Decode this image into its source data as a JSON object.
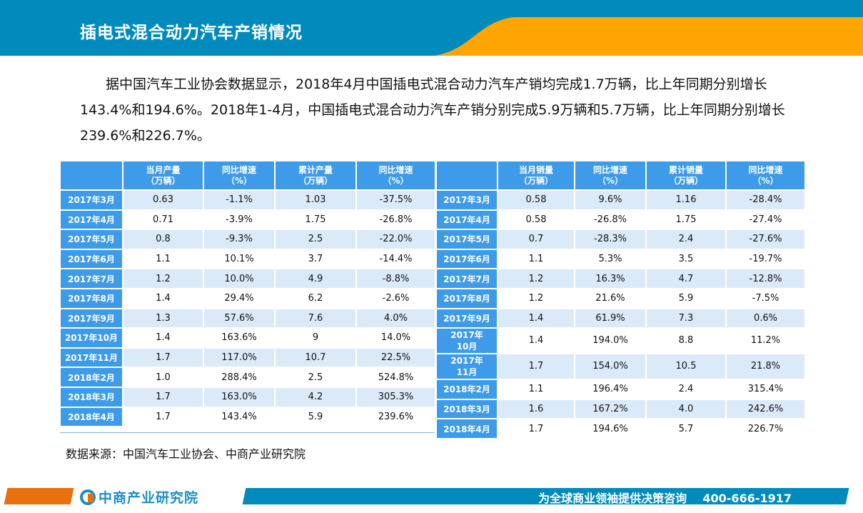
{
  "header": {
    "title": "插电式混合动力汽车产销情况",
    "colors": {
      "blue": "#018bbd",
      "orange": "#fea503"
    }
  },
  "intro": {
    "text": "据中国汽车工业协会数据显示，2018年4月中国插电式混合动力汽车产销均完成1.7万辆，比上年同期分别增长143.4%和194.6%。2018年1-4月，中国插电式混合动力汽车产销分别完成5.9万辆和5.7万辆，比上年同期分别增长239.6%和226.7%。"
  },
  "production_table": {
    "headers": [
      "",
      "当月产量\n（万辆）",
      "同比增速\n（%）",
      "累计产量\n（万辆）",
      "同比增速\n（%）"
    ],
    "rows": [
      [
        "2017年3月",
        "0.63",
        "-1.1%",
        "1.03",
        "-37.5%"
      ],
      [
        "2017年4月",
        "0.71",
        "-3.9%",
        "1.75",
        "-26.8%"
      ],
      [
        "2017年5月",
        "0.8",
        "-9.3%",
        "2.5",
        "-22.0%"
      ],
      [
        "2017年6月",
        "1.1",
        "10.1%",
        "3.7",
        "-14.4%"
      ],
      [
        "2017年7月",
        "1.2",
        "10.0%",
        "4.9",
        "-8.8%"
      ],
      [
        "2017年8月",
        "1.4",
        "29.4%",
        "6.2",
        "-2.6%"
      ],
      [
        "2017年9月",
        "1.3",
        "57.6%",
        "7.6",
        "4.0%"
      ],
      [
        "2017年10月",
        "1.4",
        "163.6%",
        "9",
        "14.0%"
      ],
      [
        "2017年11月",
        "1.7",
        "117.0%",
        "10.7",
        "22.5%"
      ],
      [
        "2018年2月",
        "1.0",
        "288.4%",
        "2.5",
        "524.8%"
      ],
      [
        "2018年3月",
        "1.7",
        "163.0%",
        "4.2",
        "305.3%"
      ],
      [
        "2018年4月",
        "1.7",
        "143.4%",
        "5.9",
        "239.6%"
      ]
    ]
  },
  "sales_table": {
    "headers": [
      "",
      "当月销量\n（万辆）",
      "同比增速\n（%）",
      "累计销量\n（万辆）",
      "同比增速\n（%）"
    ],
    "rows": [
      [
        "2017年3月",
        "0.58",
        "9.6%",
        "1.16",
        "-28.4%"
      ],
      [
        "2017年4月",
        "0.58",
        "-26.8%",
        "1.75",
        "-27.4%"
      ],
      [
        "2017年5月",
        "0.7",
        "-28.3%",
        "2.4",
        "-27.6%"
      ],
      [
        "2017年6月",
        "1.1",
        "5.3%",
        "3.5",
        "-19.7%"
      ],
      [
        "2017年7月",
        "1.2",
        "16.3%",
        "4.7",
        "-12.8%"
      ],
      [
        "2017年8月",
        "1.2",
        "21.6%",
        "5.9",
        "-7.5%"
      ],
      [
        "2017年9月",
        "1.4",
        "61.9%",
        "7.3",
        "0.6%"
      ],
      [
        "2017年10月",
        "1.4",
        "194.0%",
        "8.8",
        "11.2%"
      ],
      [
        "2017年11月",
        "1.7",
        "154.0%",
        "10.5",
        "21.8%"
      ],
      [
        "2018年2月",
        "1.1",
        "196.4%",
        "2.4",
        "315.4%"
      ],
      [
        "2018年3月",
        "1.6",
        "167.2%",
        "4.0",
        "242.6%"
      ],
      [
        "2018年4月",
        "1.7",
        "194.6%",
        "5.7",
        "226.7%"
      ]
    ]
  },
  "source": "数据来源：中国汽车工业协会、中商产业研究院",
  "footer": {
    "logo": "中商产业研究院",
    "slogan": "为全球商业领袖提供决策咨询",
    "phone": "400-666-1917"
  }
}
